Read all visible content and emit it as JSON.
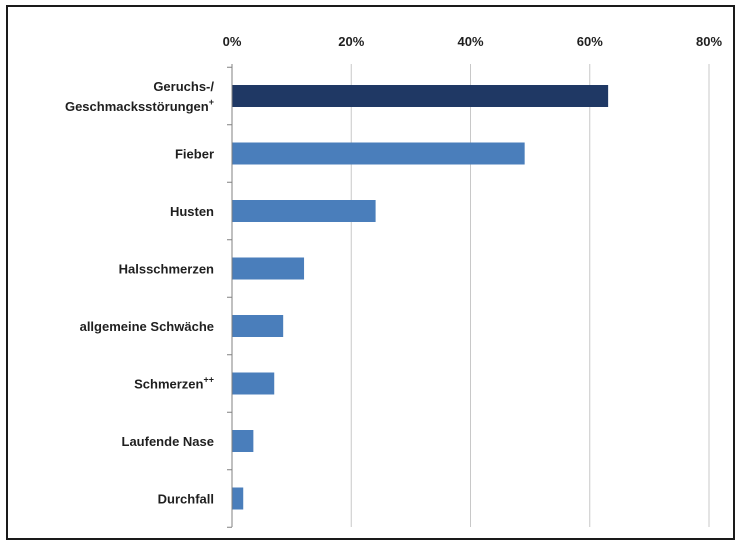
{
  "chart_data": {
    "type": "bar",
    "orientation": "horizontal",
    "title": "",
    "xlabel": "",
    "ylabel": "",
    "xlim": [
      0,
      80
    ],
    "xticks": [
      "0%",
      "20%",
      "40%",
      "60%",
      "80%"
    ],
    "x_axis_position": "top",
    "grid": true,
    "categories": [
      {
        "lines": [
          "Geruchs-/",
          "Geschmacksstörungen"
        ],
        "sup": "+"
      },
      {
        "lines": [
          "Fieber"
        ],
        "sup": ""
      },
      {
        "lines": [
          "Husten"
        ],
        "sup": ""
      },
      {
        "lines": [
          "Halsschmerzen"
        ],
        "sup": ""
      },
      {
        "lines": [
          "allgemeine Schwäche"
        ],
        "sup": ""
      },
      {
        "lines": [
          "Schmerzen"
        ],
        "sup": "++"
      },
      {
        "lines": [
          "Laufende Nase"
        ],
        "sup": ""
      },
      {
        "lines": [
          "Durchfall"
        ],
        "sup": ""
      }
    ],
    "values": [
      63,
      49,
      24,
      12,
      8.5,
      7,
      3.5,
      1.8
    ],
    "colors": {
      "highlight": "#1f3864",
      "default": "#4a7ebb",
      "grid": "#c8c8c8",
      "axis": "#808080"
    },
    "highlight_index": 0
  }
}
